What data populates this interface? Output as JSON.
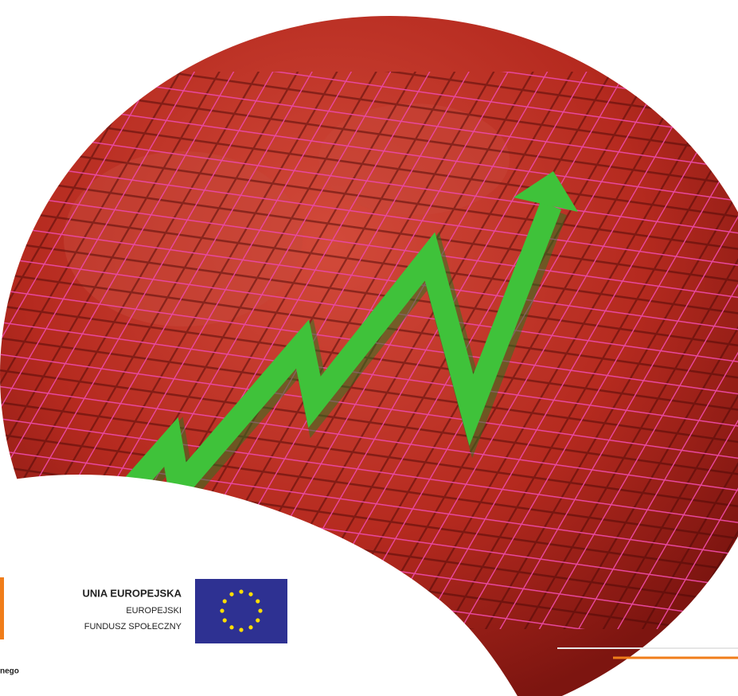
{
  "logo": {
    "title": "UNIA EUROPEJSKA",
    "line1": "EUROPEJSKI",
    "line2": "FUNDUSZ SPOŁECZNY"
  },
  "footer_fragment": "nego"
}
